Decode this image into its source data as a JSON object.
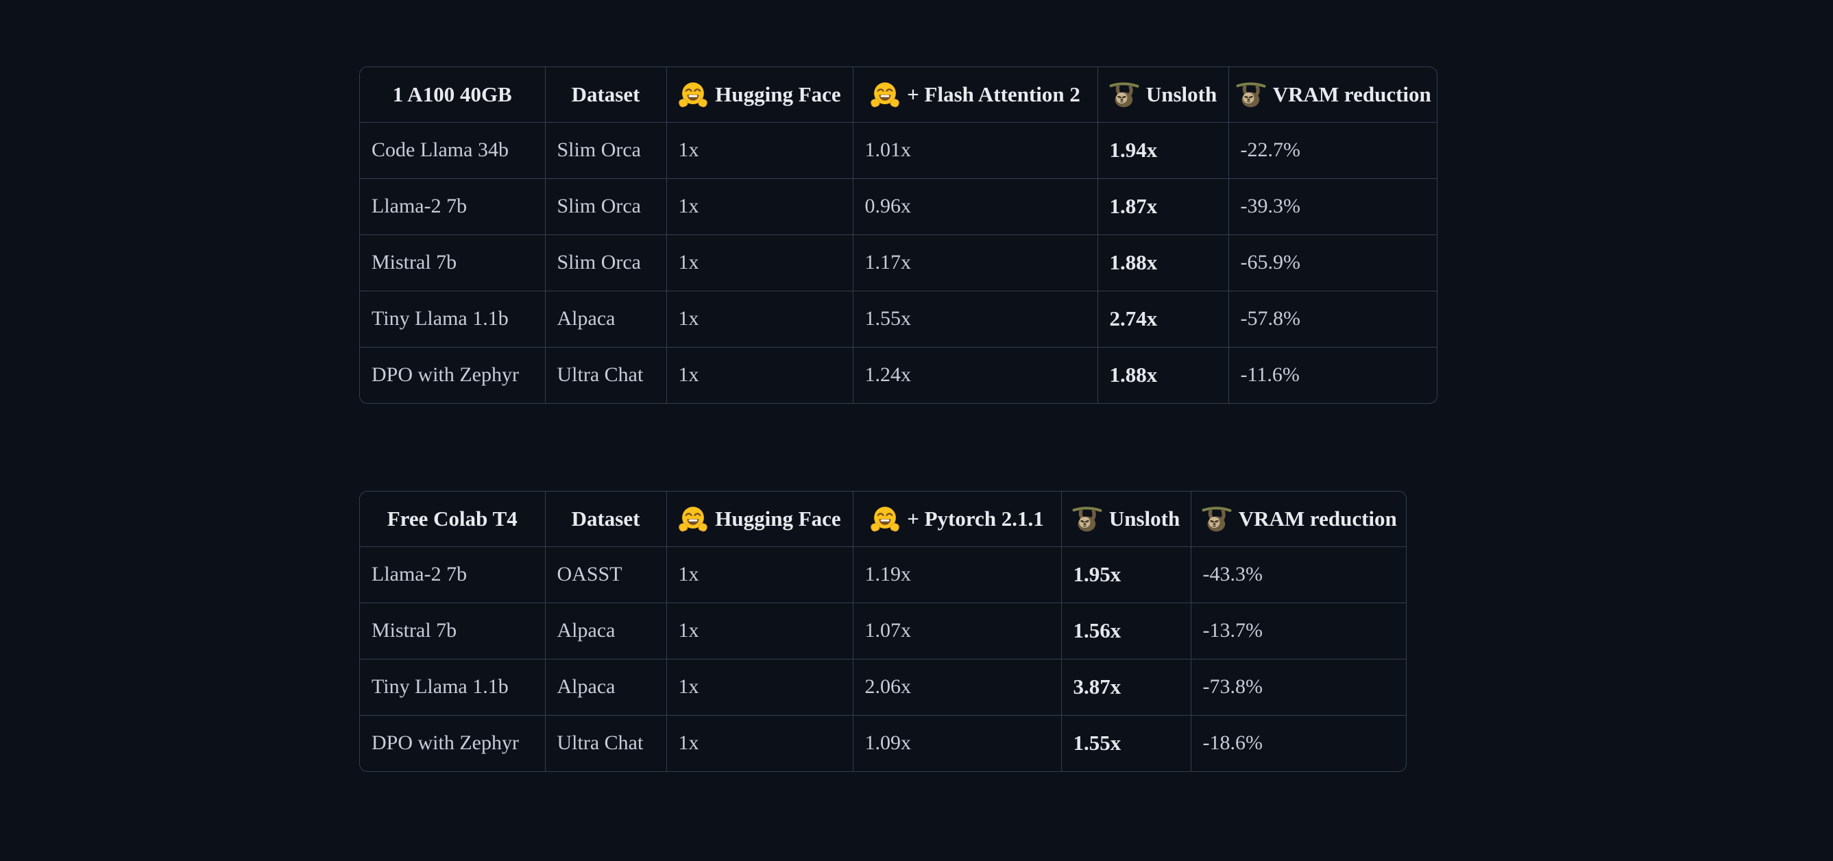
{
  "page": {
    "colors": {
      "background": "#0c1019",
      "table_border": "#343e50",
      "header_text": "#e7eaee",
      "body_text": "#c8cdd7",
      "bold_text": "#e4e8ed"
    }
  },
  "tables": [
    {
      "id": "a100-40gb-benchmark",
      "columns": [
        {
          "emoji": "",
          "icon": null,
          "label": "1 A100 40GB"
        },
        {
          "emoji": "",
          "icon": null,
          "label": "Dataset"
        },
        {
          "emoji": "🤗",
          "icon": "hugging-face",
          "label": "Hugging Face"
        },
        {
          "emoji": "🤗",
          "icon": "hugging-face",
          "label": "+ Flash Attention 2"
        },
        {
          "emoji": "🦥",
          "icon": "sloth",
          "label": "Unsloth"
        },
        {
          "emoji": "🦥",
          "icon": "sloth",
          "label": "VRAM reduction"
        }
      ],
      "bold_column_index": 4,
      "rows": [
        [
          "Code Llama 34b",
          "Slim Orca",
          "1x",
          "1.01x",
          "1.94x",
          "-22.7%"
        ],
        [
          "Llama-2 7b",
          "Slim Orca",
          "1x",
          "0.96x",
          "1.87x",
          "-39.3%"
        ],
        [
          "Mistral 7b",
          "Slim Orca",
          "1x",
          "1.17x",
          "1.88x",
          "-65.9%"
        ],
        [
          "Tiny Llama 1.1b",
          "Alpaca",
          "1x",
          "1.55x",
          "2.74x",
          "-57.8%"
        ],
        [
          "DPO with Zephyr",
          "Ultra Chat",
          "1x",
          "1.24x",
          "1.88x",
          "-11.6%"
        ]
      ]
    },
    {
      "id": "free-colab-t4-benchmark",
      "columns": [
        {
          "emoji": "",
          "icon": null,
          "label": "Free Colab T4"
        },
        {
          "emoji": "",
          "icon": null,
          "label": "Dataset"
        },
        {
          "emoji": "🤗",
          "icon": "hugging-face",
          "label": "Hugging Face"
        },
        {
          "emoji": "🤗",
          "icon": "hugging-face",
          "label": "+ Pytorch 2.1.1"
        },
        {
          "emoji": "🦥",
          "icon": "sloth",
          "label": "Unsloth"
        },
        {
          "emoji": "🦥",
          "icon": "sloth",
          "label": "VRAM reduction"
        }
      ],
      "bold_column_index": 4,
      "rows": [
        [
          "Llama-2 7b",
          "OASST",
          "1x",
          "1.19x",
          "1.95x",
          "-43.3%"
        ],
        [
          "Mistral 7b",
          "Alpaca",
          "1x",
          "1.07x",
          "1.56x",
          "-13.7%"
        ],
        [
          "Tiny Llama 1.1b",
          "Alpaca",
          "1x",
          "2.06x",
          "3.87x",
          "-73.8%"
        ],
        [
          "DPO with Zephyr",
          "Ultra Chat",
          "1x",
          "1.09x",
          "1.55x",
          "-18.6%"
        ]
      ]
    }
  ]
}
